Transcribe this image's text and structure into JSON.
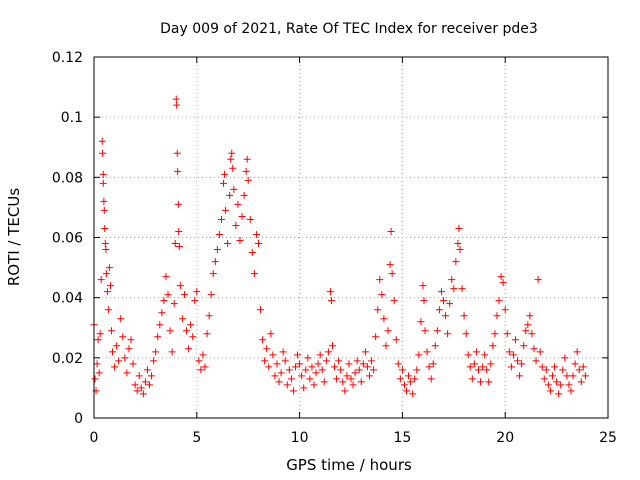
{
  "chart_data": {
    "type": "scatter",
    "title": "Day 009 of 2021, Rate Of TEC Index for receiver pde3",
    "xlabel": "GPS time / hours",
    "ylabel": "ROTI / TECUs",
    "xlim": [
      0,
      25
    ],
    "ylim": [
      0,
      0.12
    ],
    "x_ticks": [
      0,
      5,
      10,
      15,
      20,
      25
    ],
    "y_ticks": [
      0,
      0.02,
      0.04,
      0.06,
      0.08,
      0.1,
      0.12
    ],
    "x_tick_labels": [
      "0",
      "5",
      "10",
      "15",
      "20",
      "25"
    ],
    "y_tick_labels": [
      "0",
      "0.02",
      "0.04",
      "0.06",
      "0.08",
      "0.1",
      "0.12"
    ],
    "grid": true,
    "legend": "none",
    "marker": "plus",
    "series": [
      {
        "color": "#ff0000",
        "points": [
          [
            0.0,
            0.031
          ],
          [
            0.05,
            0.013
          ],
          [
            0.1,
            0.009
          ],
          [
            0.15,
            0.018
          ],
          [
            0.2,
            0.026
          ],
          [
            0.25,
            0.015
          ],
          [
            0.3,
            0.028
          ],
          [
            0.35,
            0.046
          ],
          [
            0.4,
            0.092
          ],
          [
            0.42,
            0.088
          ],
          [
            0.45,
            0.081
          ],
          [
            0.45,
            0.078
          ],
          [
            0.48,
            0.072
          ],
          [
            0.5,
            0.069
          ],
          [
            0.52,
            0.063
          ],
          [
            0.55,
            0.058
          ],
          [
            0.58,
            0.056
          ],
          [
            0.6,
            0.048
          ],
          [
            0.65,
            0.042
          ],
          [
            0.7,
            0.036
          ],
          [
            0.75,
            0.05
          ],
          [
            0.8,
            0.044
          ],
          [
            0.85,
            0.029
          ],
          [
            0.9,
            0.022
          ],
          [
            1.0,
            0.017
          ],
          [
            1.1,
            0.024
          ],
          [
            1.2,
            0.019
          ],
          [
            1.3,
            0.033
          ],
          [
            1.4,
            0.027
          ],
          [
            1.5,
            0.02
          ],
          [
            1.6,
            0.015
          ],
          [
            1.7,
            0.023
          ],
          [
            1.8,
            0.026
          ],
          [
            1.9,
            0.018
          ],
          [
            2.0,
            0.011
          ],
          [
            2.1,
            0.009
          ],
          [
            2.2,
            0.014
          ],
          [
            2.3,
            0.01
          ],
          [
            2.4,
            0.008
          ],
          [
            2.5,
            0.012
          ],
          [
            2.6,
            0.016
          ],
          [
            2.7,
            0.011
          ],
          [
            2.8,
            0.014
          ],
          [
            2.9,
            0.019
          ],
          [
            3.0,
            0.022
          ],
          [
            3.1,
            0.027
          ],
          [
            3.2,
            0.031
          ],
          [
            3.3,
            0.035
          ],
          [
            3.4,
            0.039
          ],
          [
            3.5,
            0.047
          ],
          [
            3.6,
            0.041
          ],
          [
            3.7,
            0.029
          ],
          [
            3.8,
            0.022
          ],
          [
            3.9,
            0.038
          ],
          [
            3.95,
            0.058
          ],
          [
            4.0,
            0.106
          ],
          [
            4.02,
            0.104
          ],
          [
            4.05,
            0.088
          ],
          [
            4.07,
            0.082
          ],
          [
            4.1,
            0.071
          ],
          [
            4.12,
            0.062
          ],
          [
            4.15,
            0.057
          ],
          [
            4.2,
            0.044
          ],
          [
            4.3,
            0.033
          ],
          [
            4.4,
            0.041
          ],
          [
            4.5,
            0.029
          ],
          [
            4.6,
            0.023
          ],
          [
            4.7,
            0.031
          ],
          [
            4.8,
            0.027
          ],
          [
            4.9,
            0.039
          ],
          [
            5.0,
            0.042
          ],
          [
            5.1,
            0.019
          ],
          [
            5.2,
            0.016
          ],
          [
            5.3,
            0.021
          ],
          [
            5.4,
            0.017
          ],
          [
            5.5,
            0.028
          ],
          [
            5.6,
            0.034
          ],
          [
            5.7,
            0.041
          ],
          [
            5.8,
            0.048
          ],
          [
            5.9,
            0.052
          ],
          [
            6.0,
            0.056
          ],
          [
            6.1,
            0.061
          ],
          [
            6.2,
            0.066
          ],
          [
            6.3,
            0.078
          ],
          [
            6.35,
            0.081
          ],
          [
            6.4,
            0.069
          ],
          [
            6.5,
            0.058
          ],
          [
            6.6,
            0.074
          ],
          [
            6.65,
            0.086
          ],
          [
            6.7,
            0.088
          ],
          [
            6.75,
            0.083
          ],
          [
            6.8,
            0.076
          ],
          [
            6.9,
            0.064
          ],
          [
            7.0,
            0.071
          ],
          [
            7.1,
            0.059
          ],
          [
            7.2,
            0.067
          ],
          [
            7.3,
            0.074
          ],
          [
            7.4,
            0.082
          ],
          [
            7.45,
            0.086
          ],
          [
            7.5,
            0.079
          ],
          [
            7.6,
            0.066
          ],
          [
            7.7,
            0.055
          ],
          [
            7.8,
            0.048
          ],
          [
            7.9,
            0.061
          ],
          [
            8.0,
            0.058
          ],
          [
            8.1,
            0.036
          ],
          [
            8.2,
            0.026
          ],
          [
            8.3,
            0.019
          ],
          [
            8.4,
            0.023
          ],
          [
            8.5,
            0.017
          ],
          [
            8.6,
            0.028
          ],
          [
            8.7,
            0.021
          ],
          [
            8.8,
            0.014
          ],
          [
            8.9,
            0.018
          ],
          [
            9.0,
            0.012
          ],
          [
            9.1,
            0.015
          ],
          [
            9.2,
            0.022
          ],
          [
            9.3,
            0.019
          ],
          [
            9.4,
            0.011
          ],
          [
            9.5,
            0.016
          ],
          [
            9.6,
            0.013
          ],
          [
            9.7,
            0.009
          ],
          [
            9.8,
            0.017
          ],
          [
            9.9,
            0.021
          ],
          [
            10.0,
            0.018
          ],
          [
            10.1,
            0.014
          ],
          [
            10.2,
            0.01
          ],
          [
            10.3,
            0.016
          ],
          [
            10.4,
            0.02
          ],
          [
            10.5,
            0.013
          ],
          [
            10.6,
            0.017
          ],
          [
            10.7,
            0.011
          ],
          [
            10.8,
            0.015
          ],
          [
            10.9,
            0.018
          ],
          [
            11.0,
            0.021
          ],
          [
            11.1,
            0.016
          ],
          [
            11.2,
            0.012
          ],
          [
            11.3,
            0.019
          ],
          [
            11.4,
            0.022
          ],
          [
            11.5,
            0.042
          ],
          [
            11.55,
            0.039
          ],
          [
            11.6,
            0.024
          ],
          [
            11.7,
            0.017
          ],
          [
            11.8,
            0.013
          ],
          [
            11.9,
            0.019
          ],
          [
            12.0,
            0.016
          ],
          [
            12.1,
            0.012
          ],
          [
            12.2,
            0.009
          ],
          [
            12.3,
            0.014
          ],
          [
            12.4,
            0.018
          ],
          [
            12.5,
            0.013
          ],
          [
            12.6,
            0.011
          ],
          [
            12.7,
            0.015
          ],
          [
            12.8,
            0.019
          ],
          [
            12.9,
            0.016
          ],
          [
            13.0,
            0.012
          ],
          [
            13.1,
            0.018
          ],
          [
            13.2,
            0.022
          ],
          [
            13.3,
            0.017
          ],
          [
            13.4,
            0.014
          ],
          [
            13.5,
            0.019
          ],
          [
            13.6,
            0.016
          ],
          [
            13.7,
            0.027
          ],
          [
            13.8,
            0.036
          ],
          [
            13.9,
            0.046
          ],
          [
            14.0,
            0.041
          ],
          [
            14.1,
            0.033
          ],
          [
            14.2,
            0.024
          ],
          [
            14.3,
            0.029
          ],
          [
            14.4,
            0.051
          ],
          [
            14.45,
            0.062
          ],
          [
            14.5,
            0.048
          ],
          [
            14.6,
            0.039
          ],
          [
            14.7,
            0.026
          ],
          [
            14.8,
            0.018
          ],
          [
            14.9,
            0.013
          ],
          [
            15.0,
            0.016
          ],
          [
            15.1,
            0.011
          ],
          [
            15.2,
            0.009
          ],
          [
            15.3,
            0.014
          ],
          [
            15.4,
            0.012
          ],
          [
            15.5,
            0.008
          ],
          [
            15.6,
            0.013
          ],
          [
            15.7,
            0.016
          ],
          [
            15.8,
            0.021
          ],
          [
            15.9,
            0.032
          ],
          [
            16.0,
            0.044
          ],
          [
            16.05,
            0.039
          ],
          [
            16.1,
            0.029
          ],
          [
            16.2,
            0.022
          ],
          [
            16.3,
            0.017
          ],
          [
            16.4,
            0.013
          ],
          [
            16.5,
            0.018
          ],
          [
            16.6,
            0.024
          ],
          [
            16.7,
            0.029
          ],
          [
            16.8,
            0.036
          ],
          [
            16.9,
            0.042
          ],
          [
            17.0,
            0.039
          ],
          [
            17.1,
            0.034
          ],
          [
            17.2,
            0.028
          ],
          [
            17.3,
            0.038
          ],
          [
            17.4,
            0.046
          ],
          [
            17.5,
            0.043
          ],
          [
            17.6,
            0.052
          ],
          [
            17.7,
            0.058
          ],
          [
            17.75,
            0.063
          ],
          [
            17.8,
            0.056
          ],
          [
            17.9,
            0.043
          ],
          [
            18.0,
            0.034
          ],
          [
            18.1,
            0.028
          ],
          [
            18.2,
            0.021
          ],
          [
            18.3,
            0.017
          ],
          [
            18.4,
            0.013
          ],
          [
            18.5,
            0.018
          ],
          [
            18.6,
            0.022
          ],
          [
            18.7,
            0.016
          ],
          [
            18.8,
            0.012
          ],
          [
            18.9,
            0.017
          ],
          [
            19.0,
            0.021
          ],
          [
            19.1,
            0.016
          ],
          [
            19.2,
            0.012
          ],
          [
            19.3,
            0.018
          ],
          [
            19.4,
            0.024
          ],
          [
            19.5,
            0.028
          ],
          [
            19.6,
            0.034
          ],
          [
            19.7,
            0.039
          ],
          [
            19.8,
            0.047
          ],
          [
            19.9,
            0.045
          ],
          [
            20.0,
            0.036
          ],
          [
            20.1,
            0.028
          ],
          [
            20.2,
            0.022
          ],
          [
            20.3,
            0.017
          ],
          [
            20.4,
            0.021
          ],
          [
            20.5,
            0.026
          ],
          [
            20.6,
            0.019
          ],
          [
            20.7,
            0.014
          ],
          [
            20.8,
            0.018
          ],
          [
            20.9,
            0.024
          ],
          [
            21.0,
            0.029
          ],
          [
            21.1,
            0.031
          ],
          [
            21.2,
            0.034
          ],
          [
            21.3,
            0.028
          ],
          [
            21.4,
            0.023
          ],
          [
            21.5,
            0.019
          ],
          [
            21.6,
            0.046
          ],
          [
            21.7,
            0.022
          ],
          [
            21.8,
            0.017
          ],
          [
            21.9,
            0.013
          ],
          [
            22.0,
            0.016
          ],
          [
            22.1,
            0.011
          ],
          [
            22.2,
            0.009
          ],
          [
            22.3,
            0.014
          ],
          [
            22.4,
            0.017
          ],
          [
            22.5,
            0.012
          ],
          [
            22.6,
            0.008
          ],
          [
            22.7,
            0.011
          ],
          [
            22.8,
            0.016
          ],
          [
            22.9,
            0.02
          ],
          [
            23.0,
            0.014
          ],
          [
            23.1,
            0.011
          ],
          [
            23.2,
            0.009
          ],
          [
            23.3,
            0.014
          ],
          [
            23.4,
            0.018
          ],
          [
            23.5,
            0.022
          ],
          [
            23.6,
            0.016
          ],
          [
            23.7,
            0.012
          ],
          [
            23.8,
            0.017
          ],
          [
            23.9,
            0.014
          ]
        ]
      }
    ]
  }
}
